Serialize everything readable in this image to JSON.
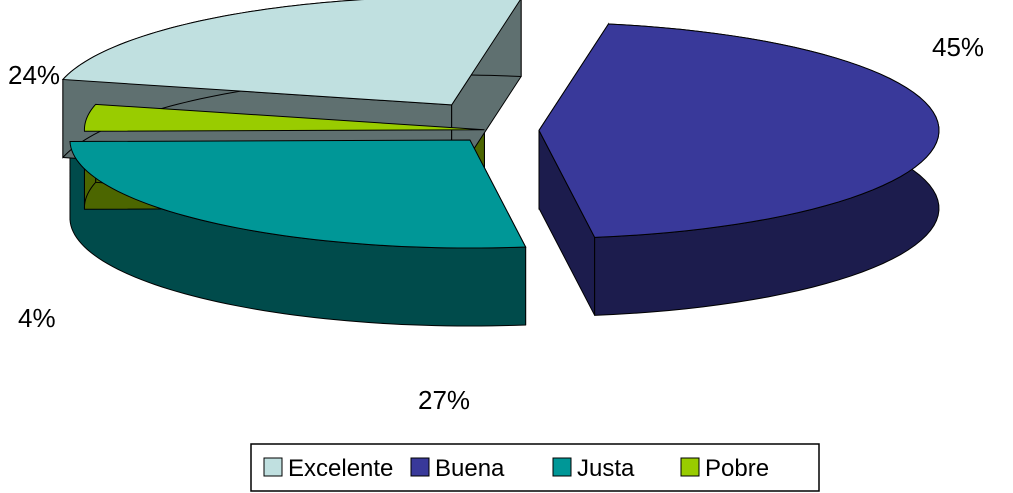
{
  "chart_data": {
    "type": "pie",
    "variant": "3d-exploded",
    "legend_position": "bottom",
    "slices": [
      {
        "label": "Excelente",
        "value": 24,
        "data_label": "24%",
        "color": "#c0e0e0",
        "side_color": "#5f7070"
      },
      {
        "label": "Buena",
        "value": 45,
        "data_label": "45%",
        "color": "#39399a",
        "side_color": "#1c1c4d"
      },
      {
        "label": "Justa",
        "value": 27,
        "data_label": "27%",
        "color": "#009797",
        "side_color": "#004b4b"
      },
      {
        "label": "Pobre",
        "value": 4,
        "data_label": "4%",
        "color": "#99cc00",
        "side_color": "#4c6600"
      }
    ]
  }
}
